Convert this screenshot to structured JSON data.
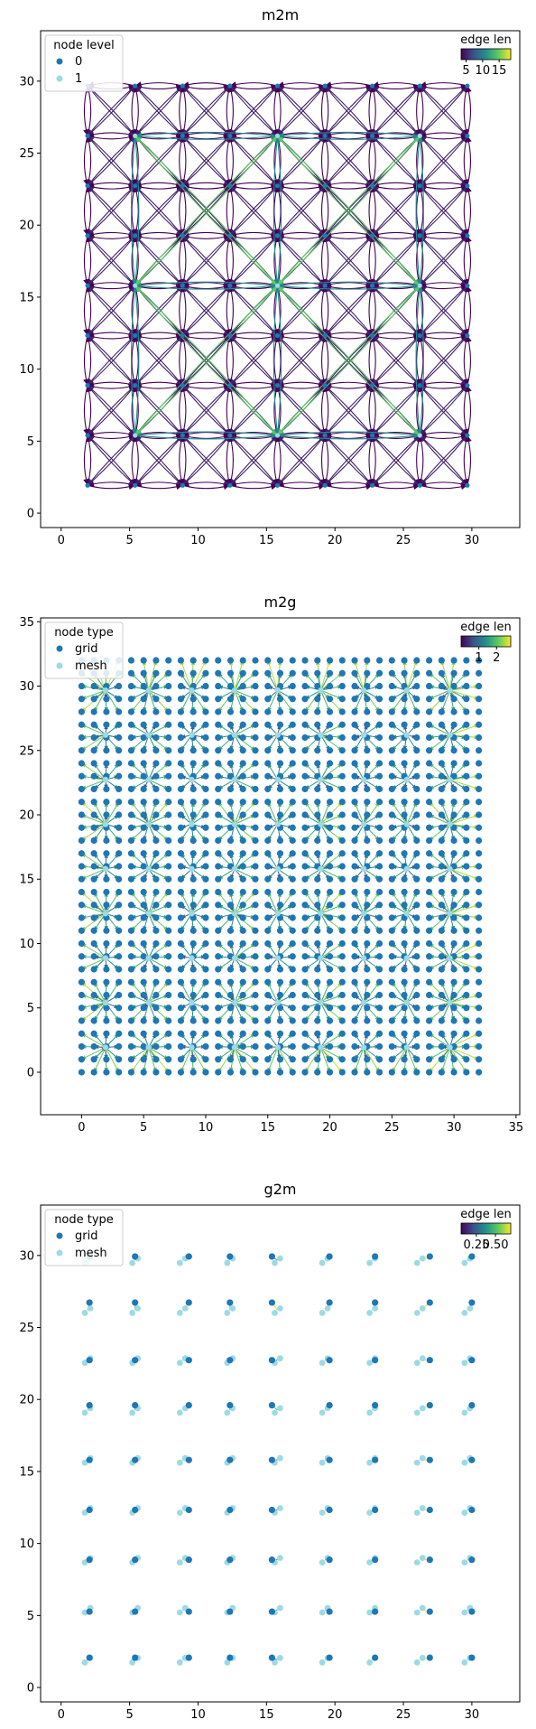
{
  "colors": {
    "grid_node": "#1f77b4",
    "mesh_node": "#9edae5",
    "level0": "#1f77b4",
    "level1": "#9edae5",
    "cmap_stops": [
      "#440154",
      "#3b528b",
      "#21918c",
      "#5ec962",
      "#fde725"
    ]
  },
  "chart_data": [
    {
      "id": "m2m",
      "type": "scatter",
      "title": "m2m",
      "xlabel": "",
      "ylabel": "",
      "xlim": [
        -1.5,
        33.5
      ],
      "ylim": [
        -1,
        33.5
      ],
      "xticks": [
        "0",
        "5",
        "10",
        "15",
        "20",
        "25",
        "30"
      ],
      "yticks": [
        "0",
        "5",
        "10",
        "15",
        "20",
        "25",
        "30"
      ],
      "legend": {
        "title": "node level",
        "placement": "top-left",
        "entries": [
          "0",
          "1"
        ]
      },
      "colorbar": {
        "title": "edge len",
        "ticks": [
          "5",
          "10",
          "15"
        ],
        "range": [
          3.5,
          18.5
        ]
      },
      "level0_nodes": {
        "x": [
          1.93,
          5.4,
          8.87,
          12.33,
          15.8,
          19.27,
          22.73,
          26.2,
          29.67
        ],
        "y": [
          1.93,
          5.4,
          8.87,
          12.33,
          15.8,
          19.27,
          22.73,
          26.2,
          29.67
        ]
      },
      "level1_nodes": {
        "x": [
          5.4,
          15.8,
          26.2
        ],
        "y": [
          5.4,
          15.8,
          26.2
        ]
      },
      "edge_lengths": {
        "level0_axis": 3.47,
        "level0_diagonal": 4.9,
        "level1_axis": 10.4,
        "level1_diagonal": 14.7
      }
    },
    {
      "id": "m2g",
      "type": "scatter",
      "title": "m2g",
      "xlabel": "",
      "ylabel": "",
      "xlim": [
        -3.3,
        35.3
      ],
      "ylim": [
        -3.3,
        35.3
      ],
      "xticks": [
        "0",
        "5",
        "10",
        "15",
        "20",
        "25",
        "30",
        "35"
      ],
      "yticks": [
        "0",
        "5",
        "10",
        "15",
        "20",
        "25",
        "30",
        "35"
      ],
      "legend": {
        "title": "node type",
        "placement": "top-left",
        "entries": [
          "grid",
          "mesh"
        ]
      },
      "colorbar": {
        "title": "edge len",
        "ticks": [
          "1",
          "2"
        ],
        "range": [
          0,
          2.8
        ]
      },
      "grid_nodes": {
        "range": [
          0,
          32
        ],
        "step": 1
      },
      "mesh_nodes": {
        "x": [
          1.93,
          5.4,
          8.87,
          12.33,
          15.8,
          19.27,
          22.73,
          26.2,
          29.67
        ],
        "y": [
          1.93,
          5.4,
          8.87,
          12.33,
          15.8,
          19.27,
          22.73,
          26.2,
          29.67
        ]
      }
    },
    {
      "id": "g2m",
      "type": "scatter",
      "title": "g2m",
      "xlabel": "",
      "ylabel": "",
      "xlim": [
        -1.5,
        33.5
      ],
      "ylim": [
        -1,
        33.5
      ],
      "xticks": [
        "0",
        "5",
        "10",
        "15",
        "20",
        "25",
        "30"
      ],
      "yticks": [
        "0",
        "5",
        "10",
        "15",
        "20",
        "25",
        "30"
      ],
      "legend": {
        "title": "node type",
        "placement": "top-left",
        "entries": [
          "grid",
          "mesh"
        ]
      },
      "colorbar": {
        "title": "edge len",
        "ticks": [
          "0.25",
          "0.50"
        ],
        "range": [
          0.05,
          0.7
        ]
      },
      "grid_nodes": {
        "x": [
          2.07,
          5.4,
          9.33,
          12.33,
          15.4,
          19.6,
          22.93,
          26.93,
          30.0
        ],
        "y": [
          2.07,
          5.27,
          8.87,
          12.33,
          15.8,
          19.6,
          22.73,
          26.73,
          29.93
        ]
      },
      "mesh_nodes": {
        "x": [
          1.93,
          5.4,
          8.87,
          12.33,
          15.8,
          19.27,
          22.73,
          26.2,
          29.67
        ],
        "y": [
          1.93,
          5.4,
          8.87,
          12.33,
          15.8,
          19.27,
          22.73,
          26.2,
          29.67
        ]
      }
    }
  ]
}
